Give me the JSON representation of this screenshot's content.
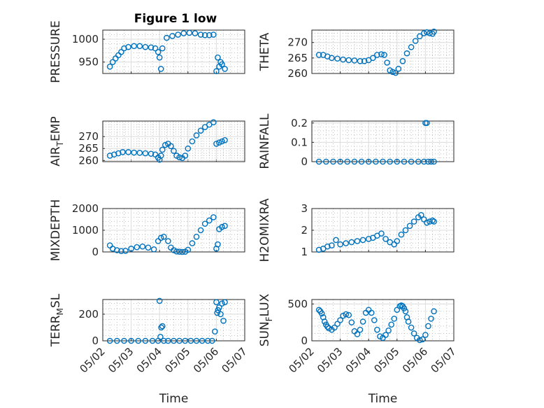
{
  "figure": {
    "title": "Figure 1 low",
    "marker_color": "#0072BD"
  },
  "chart_data": [
    {
      "type": "scatter",
      "id": "pressure",
      "ylabel": "PRESSURE",
      "xlabel": "",
      "ylim": [
        925,
        1020
      ],
      "yticks": [
        950,
        1000
      ],
      "xlim": [
        "05/02",
        "05/07"
      ],
      "xticks": [
        "05/02",
        "05/03",
        "05/04",
        "05/05",
        "05/06",
        "05/07"
      ],
      "show_xticklabels": false,
      "grid": true,
      "series": [
        {
          "x": [
            2.25,
            2.35,
            2.45,
            2.55,
            2.65,
            2.75,
            2.9,
            3.1,
            3.3,
            3.5,
            3.7,
            3.85,
            3.95,
            4.0,
            4.05,
            4.1,
            4.25,
            4.45,
            4.65,
            4.85,
            5.05,
            5.25,
            5.45,
            5.6,
            5.75,
            5.9,
            6.0,
            6.05,
            6.1,
            6.15,
            6.2,
            6.3
          ],
          "y": [
            940,
            950,
            958,
            965,
            972,
            980,
            983,
            985,
            985,
            983,
            982,
            980,
            972,
            960,
            935,
            980,
            1003,
            1007,
            1010,
            1013,
            1014,
            1013,
            1010,
            1009,
            1009,
            1010,
            930,
            960,
            940,
            950,
            945,
            935
          ]
        }
      ]
    },
    {
      "type": "scatter",
      "id": "theta",
      "ylabel": "THETA",
      "xlabel": "",
      "ylim": [
        260,
        274
      ],
      "yticks": [
        260,
        265,
        270
      ],
      "xlim": [
        "05/02",
        "05/07"
      ],
      "xticks": [
        "05/02",
        "05/03",
        "05/04",
        "05/05",
        "05/06",
        "05/07"
      ],
      "show_xticklabels": false,
      "grid": true,
      "series": [
        {
          "x": [
            2.25,
            2.4,
            2.55,
            2.7,
            2.9,
            3.1,
            3.3,
            3.5,
            3.7,
            3.85,
            4.0,
            4.15,
            4.3,
            4.45,
            4.55,
            4.65,
            4.75,
            4.85,
            4.95,
            5.05,
            5.2,
            5.35,
            5.5,
            5.65,
            5.8,
            5.95,
            6.05,
            6.15,
            6.25,
            6.3
          ],
          "y": [
            266,
            266,
            265.5,
            265,
            264.8,
            264.5,
            264.3,
            264.2,
            264,
            264,
            264.3,
            265,
            266,
            266.2,
            266,
            263.5,
            261,
            260.5,
            260.2,
            261.5,
            264,
            266.5,
            268.5,
            270.5,
            272,
            273,
            273.3,
            273,
            272.8,
            273.5
          ]
        }
      ]
    },
    {
      "type": "scatter",
      "id": "air_temp",
      "ylabel": "AIR_TEMP",
      "ylabel_main": "AIR",
      "ylabel_sub": "T",
      "ylabel_rest": "EMP",
      "xlabel": "",
      "ylim": [
        259.5,
        276.5
      ],
      "yticks": [
        260,
        265,
        270
      ],
      "xlim": [
        "05/02",
        "05/07"
      ],
      "xticks": [
        "05/02",
        "05/03",
        "05/04",
        "05/05",
        "05/06",
        "05/07"
      ],
      "show_xticklabels": false,
      "grid": true,
      "series": [
        {
          "x": [
            2.25,
            2.4,
            2.55,
            2.7,
            2.9,
            3.1,
            3.3,
            3.5,
            3.7,
            3.85,
            3.95,
            4.0,
            4.05,
            4.1,
            4.2,
            4.3,
            4.4,
            4.5,
            4.6,
            4.7,
            4.8,
            4.9,
            5.0,
            5.15,
            5.3,
            5.45,
            5.6,
            5.75,
            5.9,
            6.0,
            6.1,
            6.2,
            6.3
          ],
          "y": [
            262,
            262.5,
            263,
            263.5,
            263.5,
            263.3,
            263.2,
            263,
            262.8,
            262.5,
            261.2,
            260.3,
            262,
            264.5,
            266.5,
            267,
            266,
            264,
            262,
            261.3,
            261,
            262,
            265,
            268,
            270.5,
            272.5,
            274,
            275,
            276,
            267,
            267.5,
            268,
            268.5
          ]
        }
      ]
    },
    {
      "type": "scatter",
      "id": "rainfall",
      "ylabel": "RAINFALL",
      "xlabel": "",
      "ylim": [
        0,
        0.21
      ],
      "yticks": [
        0,
        0.1,
        0.2
      ],
      "xlim": [
        "05/02",
        "05/07"
      ],
      "xticks": [
        "05/02",
        "05/03",
        "05/04",
        "05/05",
        "05/06",
        "05/07"
      ],
      "show_xticklabels": false,
      "grid": true,
      "series": [
        {
          "x": [
            2.25,
            2.5,
            2.75,
            3.0,
            3.25,
            3.5,
            3.75,
            4.0,
            4.25,
            4.5,
            4.75,
            5.0,
            5.25,
            5.5,
            5.75,
            5.95,
            6.0,
            6.05,
            6.1,
            6.2,
            6.3
          ],
          "y": [
            0,
            0,
            0,
            0,
            0,
            0,
            0,
            0,
            0,
            0,
            0,
            0,
            0,
            0,
            0,
            0,
            0.2,
            0.2,
            0,
            0,
            0
          ]
        }
      ]
    },
    {
      "type": "scatter",
      "id": "mixdepth",
      "ylabel": "MIXDEPTH",
      "xlabel": "",
      "ylim": [
        0,
        2000
      ],
      "yticks": [
        0,
        1000,
        2000
      ],
      "xlim": [
        "05/02",
        "05/07"
      ],
      "xticks": [
        "05/02",
        "05/03",
        "05/04",
        "05/05",
        "05/06",
        "05/07"
      ],
      "show_xticklabels": false,
      "grid": true,
      "series": [
        {
          "x": [
            2.25,
            2.35,
            2.5,
            2.65,
            2.8,
            3.0,
            3.2,
            3.4,
            3.6,
            3.8,
            3.95,
            4.05,
            4.15,
            4.3,
            4.4,
            4.5,
            4.6,
            4.7,
            4.8,
            4.9,
            5.0,
            5.15,
            5.3,
            5.45,
            5.6,
            5.75,
            5.9,
            6.0,
            6.05,
            6.1,
            6.2,
            6.3
          ],
          "y": [
            300,
            150,
            80,
            40,
            50,
            150,
            220,
            250,
            200,
            120,
            500,
            650,
            700,
            500,
            200,
            80,
            20,
            10,
            0,
            10,
            100,
            400,
            700,
            1000,
            1300,
            1450,
            1600,
            150,
            350,
            1050,
            1150,
            1200
          ]
        }
      ]
    },
    {
      "type": "scatter",
      "id": "h2omixra",
      "ylabel": "H2OMIXRA",
      "xlabel": "",
      "ylim": [
        1,
        3
      ],
      "yticks": [
        1,
        2,
        3
      ],
      "xlim": [
        "05/02",
        "05/07"
      ],
      "xticks": [
        "05/02",
        "05/03",
        "05/04",
        "05/05",
        "05/06",
        "05/07"
      ],
      "show_xticklabels": false,
      "grid": true,
      "series": [
        {
          "x": [
            2.25,
            2.4,
            2.55,
            2.7,
            2.85,
            3.0,
            3.2,
            3.4,
            3.6,
            3.8,
            4.0,
            4.15,
            4.3,
            4.45,
            4.6,
            4.75,
            4.9,
            5.0,
            5.15,
            5.3,
            5.45,
            5.6,
            5.75,
            5.85,
            5.95,
            6.05,
            6.15,
            6.25,
            6.3
          ],
          "y": [
            1.1,
            1.15,
            1.25,
            1.3,
            1.55,
            1.35,
            1.4,
            1.45,
            1.5,
            1.55,
            1.6,
            1.65,
            1.75,
            1.85,
            1.6,
            1.45,
            1.35,
            1.5,
            1.8,
            2.0,
            2.2,
            2.4,
            2.6,
            2.7,
            2.5,
            2.35,
            2.4,
            2.45,
            2.4
          ]
        }
      ]
    },
    {
      "type": "scatter",
      "id": "terr_msl",
      "ylabel": "TERR_MSL",
      "ylabel_main": "TERR",
      "ylabel_sub": "M",
      "ylabel_rest": "SL",
      "xlabel": "Time",
      "ylim": [
        0,
        310
      ],
      "yticks": [
        0,
        200
      ],
      "xlim": [
        "05/02",
        "05/07"
      ],
      "xticks": [
        "05/02",
        "05/03",
        "05/04",
        "05/05",
        "05/06",
        "05/07"
      ],
      "show_xticklabels": true,
      "grid": true,
      "series": [
        {
          "x": [
            2.25,
            2.5,
            2.75,
            3.0,
            3.25,
            3.5,
            3.75,
            3.95,
            4.0,
            4.03,
            4.06,
            4.1,
            4.15,
            4.3,
            4.5,
            4.7,
            4.9,
            5.1,
            5.3,
            5.5,
            5.7,
            5.85,
            5.95,
            6.0,
            6.03,
            6.06,
            6.1,
            6.15,
            6.2,
            6.25,
            6.3
          ],
          "y": [
            0,
            0,
            0,
            0,
            0,
            0,
            0,
            0,
            300,
            30,
            100,
            110,
            0,
            0,
            0,
            0,
            0,
            0,
            0,
            0,
            0,
            0,
            70,
            290,
            210,
            230,
            250,
            200,
            280,
            150,
            290
          ]
        }
      ]
    },
    {
      "type": "scatter",
      "id": "sun_flux",
      "ylabel": "SUN_FLUX",
      "ylabel_main": "SUN",
      "ylabel_sub": "F",
      "ylabel_rest": "LUX",
      "xlabel": "Time",
      "ylim": [
        0,
        560
      ],
      "yticks": [
        0,
        500
      ],
      "xlim": [
        "05/02",
        "05/07"
      ],
      "xticks": [
        "05/02",
        "05/03",
        "05/04",
        "05/05",
        "05/06",
        "05/07"
      ],
      "show_xticklabels": true,
      "grid": true,
      "series": [
        {
          "x": [
            2.25,
            2.3,
            2.35,
            2.4,
            2.45,
            2.5,
            2.55,
            2.6,
            2.7,
            2.8,
            2.9,
            3.0,
            3.1,
            3.2,
            3.3,
            3.4,
            3.5,
            3.6,
            3.7,
            3.8,
            3.9,
            4.0,
            4.1,
            4.2,
            4.3,
            4.4,
            4.5,
            4.6,
            4.7,
            4.8,
            4.9,
            5.0,
            5.1,
            5.15,
            5.2,
            5.25,
            5.3,
            5.35,
            5.4,
            5.5,
            5.6,
            5.7,
            5.8,
            5.9,
            6.0,
            6.1,
            6.2,
            6.3
          ],
          "y": [
            420,
            400,
            370,
            320,
            260,
            220,
            190,
            170,
            150,
            180,
            230,
            280,
            340,
            360,
            350,
            250,
            130,
            90,
            150,
            260,
            380,
            420,
            380,
            280,
            150,
            60,
            40,
            80,
            140,
            220,
            300,
            420,
            470,
            480,
            470,
            440,
            400,
            320,
            260,
            180,
            100,
            40,
            10,
            20,
            80,
            200,
            300,
            400
          ]
        }
      ]
    }
  ]
}
